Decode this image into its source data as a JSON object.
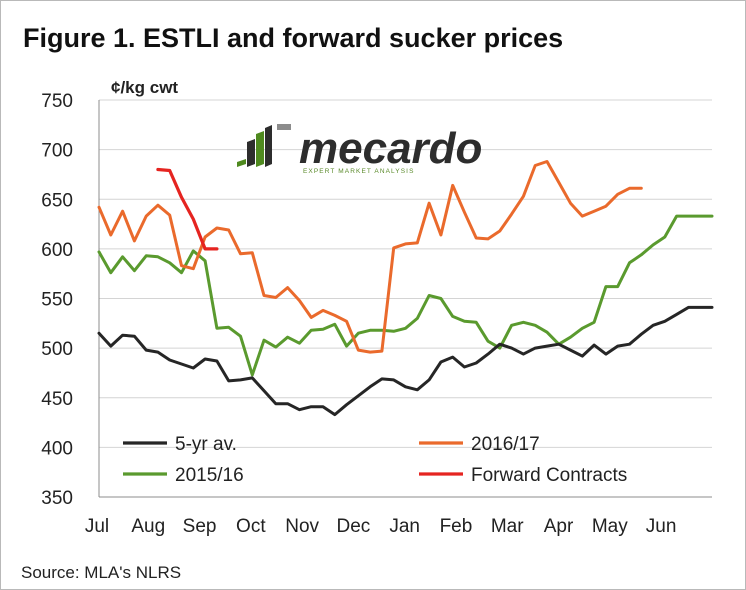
{
  "figure": {
    "title": "Figure 1. ESTLI and forward sucker prices",
    "source": "Source: MLA's NLRS"
  },
  "logo": {
    "word": "mecardo",
    "tagline": "EXPERT MARKET ANALYSIS",
    "colors": {
      "green": "#4f8a1f",
      "dark": "#2d2d2d"
    }
  },
  "chart_data": {
    "type": "line",
    "title": "Figure 1. ESTLI and forward sucker prices",
    "ylabel": "¢/kg cwt",
    "xlabel": "",
    "ylim": [
      350,
      750
    ],
    "yticks": [
      350,
      400,
      450,
      500,
      550,
      600,
      650,
      700,
      750
    ],
    "xlim": [
      0,
      52
    ],
    "categories": [
      "Jul",
      "Aug",
      "Sep",
      "Oct",
      "Nov",
      "Dec",
      "Jan",
      "Feb",
      "Mar",
      "Apr",
      "May",
      "Jun"
    ],
    "grid": true,
    "legend_placement": "bottom",
    "series": [
      {
        "name": "5-yr av.",
        "color": "#262626",
        "x": [
          0,
          1,
          2,
          3,
          4,
          5,
          6,
          7,
          8,
          9,
          10,
          11,
          12,
          13,
          14,
          15,
          16,
          17,
          18,
          19,
          20,
          21,
          22,
          23,
          24,
          25,
          26,
          27,
          28,
          29,
          30,
          31,
          32,
          33,
          34,
          35,
          36,
          37,
          38,
          39,
          40,
          41,
          42,
          43,
          44,
          45,
          46,
          47,
          48,
          49,
          50,
          51,
          52
        ],
        "values": [
          515,
          502,
          513,
          512,
          498,
          496,
          488,
          484,
          480,
          489,
          487,
          467,
          468,
          470,
          457,
          444,
          444,
          438,
          441,
          441,
          433,
          443,
          452,
          461,
          469,
          468,
          461,
          458,
          468,
          486,
          491,
          481,
          485,
          494,
          504,
          500,
          494,
          500,
          502,
          504,
          498,
          492,
          503,
          494,
          502,
          504,
          514,
          523,
          527,
          534,
          541,
          541,
          541
        ]
      },
      {
        "name": "2016/17",
        "color": "#ea6a2c",
        "x": [
          0,
          1,
          2,
          3,
          4,
          5,
          6,
          7,
          8,
          9,
          10,
          11,
          12,
          13,
          14,
          15,
          16,
          17,
          18,
          19,
          20,
          21,
          22,
          23,
          24,
          25,
          26,
          27,
          28,
          29,
          30,
          31,
          32,
          33,
          34,
          35,
          36,
          37,
          38,
          39,
          40,
          41,
          42,
          43,
          44,
          45,
          46
        ],
        "values": [
          642,
          614,
          638,
          608,
          633,
          644,
          634,
          583,
          580,
          612,
          621,
          619,
          595,
          596,
          553,
          551,
          561,
          548,
          531,
          538,
          533,
          527,
          498,
          496,
          497,
          601,
          605,
          606,
          646,
          614,
          664,
          637,
          611,
          610,
          618,
          635,
          653,
          684,
          688,
          667,
          646,
          633,
          638,
          643,
          655,
          661,
          661
        ]
      },
      {
        "name": "2015/16",
        "color": "#5a9a2e",
        "x": [
          0,
          1,
          2,
          3,
          4,
          5,
          6,
          7,
          8,
          9,
          10,
          11,
          12,
          13,
          14,
          15,
          16,
          17,
          18,
          19,
          20,
          21,
          22,
          23,
          24,
          25,
          26,
          27,
          28,
          29,
          30,
          31,
          32,
          33,
          34,
          35,
          36,
          37,
          38,
          39,
          40,
          41,
          42,
          43,
          44,
          45,
          46,
          47,
          48,
          49,
          50,
          51,
          52
        ],
        "values": [
          597,
          576,
          592,
          578,
          593,
          592,
          586,
          576,
          598,
          588,
          520,
          521,
          512,
          473,
          508,
          501,
          511,
          505,
          518,
          519,
          524,
          502,
          515,
          518,
          518,
          517,
          520,
          530,
          553,
          550,
          532,
          527,
          526,
          507,
          500,
          523,
          526,
          523,
          516,
          504,
          511,
          520,
          526,
          562,
          562,
          586,
          594,
          604,
          612,
          633,
          633,
          633,
          633
        ]
      },
      {
        "name": "Forward Contracts",
        "color": "#e52420",
        "x": [
          5,
          6,
          7,
          8,
          9,
          10
        ],
        "values": [
          680,
          679,
          652,
          630,
          600,
          600
        ]
      }
    ],
    "legend_order": [
      "5-yr av.",
      "2016/17",
      "2015/16",
      "Forward Contracts"
    ]
  }
}
